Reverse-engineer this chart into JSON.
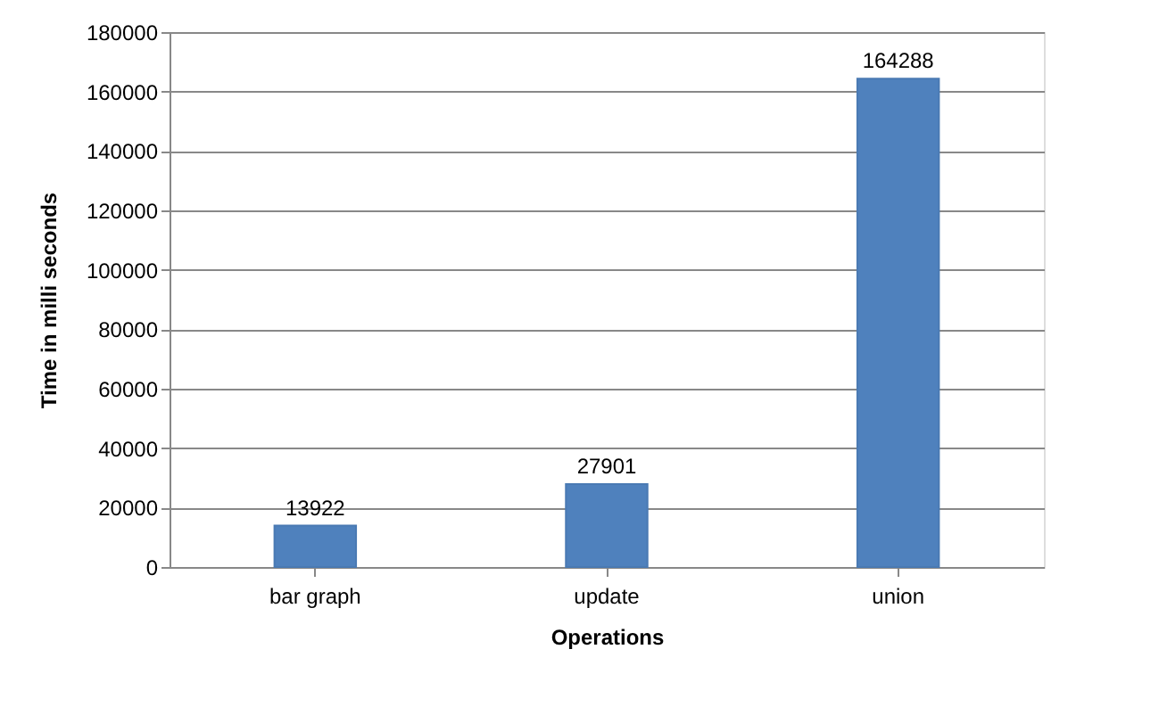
{
  "chart_data": {
    "type": "bar",
    "xlabel": "Operations",
    "ylabel": "Time in  milli seconds",
    "categories": [
      "bar graph",
      "update",
      "union"
    ],
    "values": [
      13922,
      27901,
      164288
    ],
    "color": "#4f81bd",
    "ylim": [
      0,
      180000
    ],
    "yticks": [
      0,
      20000,
      40000,
      60000,
      80000,
      100000,
      120000,
      140000,
      160000,
      180000
    ],
    "grid": "y",
    "data_labels": true
  }
}
